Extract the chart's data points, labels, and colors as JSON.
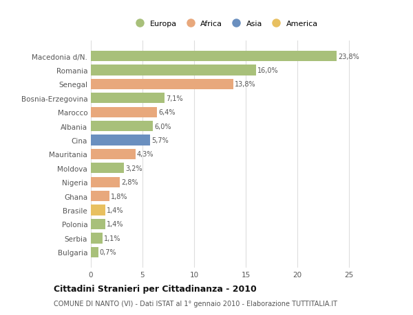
{
  "categories": [
    "Macedonia d/N.",
    "Romania",
    "Senegal",
    "Bosnia-Erzegovina",
    "Marocco",
    "Albania",
    "Cina",
    "Mauritania",
    "Moldova",
    "Nigeria",
    "Ghana",
    "Brasile",
    "Polonia",
    "Serbia",
    "Bulgaria"
  ],
  "values": [
    23.8,
    16.0,
    13.8,
    7.1,
    6.4,
    6.0,
    5.7,
    4.3,
    3.2,
    2.8,
    1.8,
    1.4,
    1.4,
    1.1,
    0.7
  ],
  "labels": [
    "23,8%",
    "16,0%",
    "13,8%",
    "7,1%",
    "6,4%",
    "6,0%",
    "5,7%",
    "4,3%",
    "3,2%",
    "2,8%",
    "1,8%",
    "1,4%",
    "1,4%",
    "1,1%",
    "0,7%"
  ],
  "colors": [
    "#a8c07a",
    "#a8c07a",
    "#e8a87c",
    "#a8c07a",
    "#e8a87c",
    "#a8c07a",
    "#6a8fbf",
    "#e8a87c",
    "#a8c07a",
    "#e8a87c",
    "#e8a87c",
    "#e8c060",
    "#a8c07a",
    "#a8c07a",
    "#a8c07a"
  ],
  "legend": [
    {
      "label": "Europa",
      "color": "#a8c07a"
    },
    {
      "label": "Africa",
      "color": "#e8a87c"
    },
    {
      "label": "Asia",
      "color": "#6a8fbf"
    },
    {
      "label": "America",
      "color": "#e8c060"
    }
  ],
  "title": "Cittadini Stranieri per Cittadinanza - 2010",
  "subtitle": "COMUNE DI NANTO (VI) - Dati ISTAT al 1° gennaio 2010 - Elaborazione TUTTITALIA.IT",
  "xlim": [
    0,
    26
  ],
  "xticks": [
    0,
    5,
    10,
    15,
    20,
    25
  ],
  "background_color": "#ffffff",
  "grid_color": "#dddddd",
  "bar_height": 0.75
}
